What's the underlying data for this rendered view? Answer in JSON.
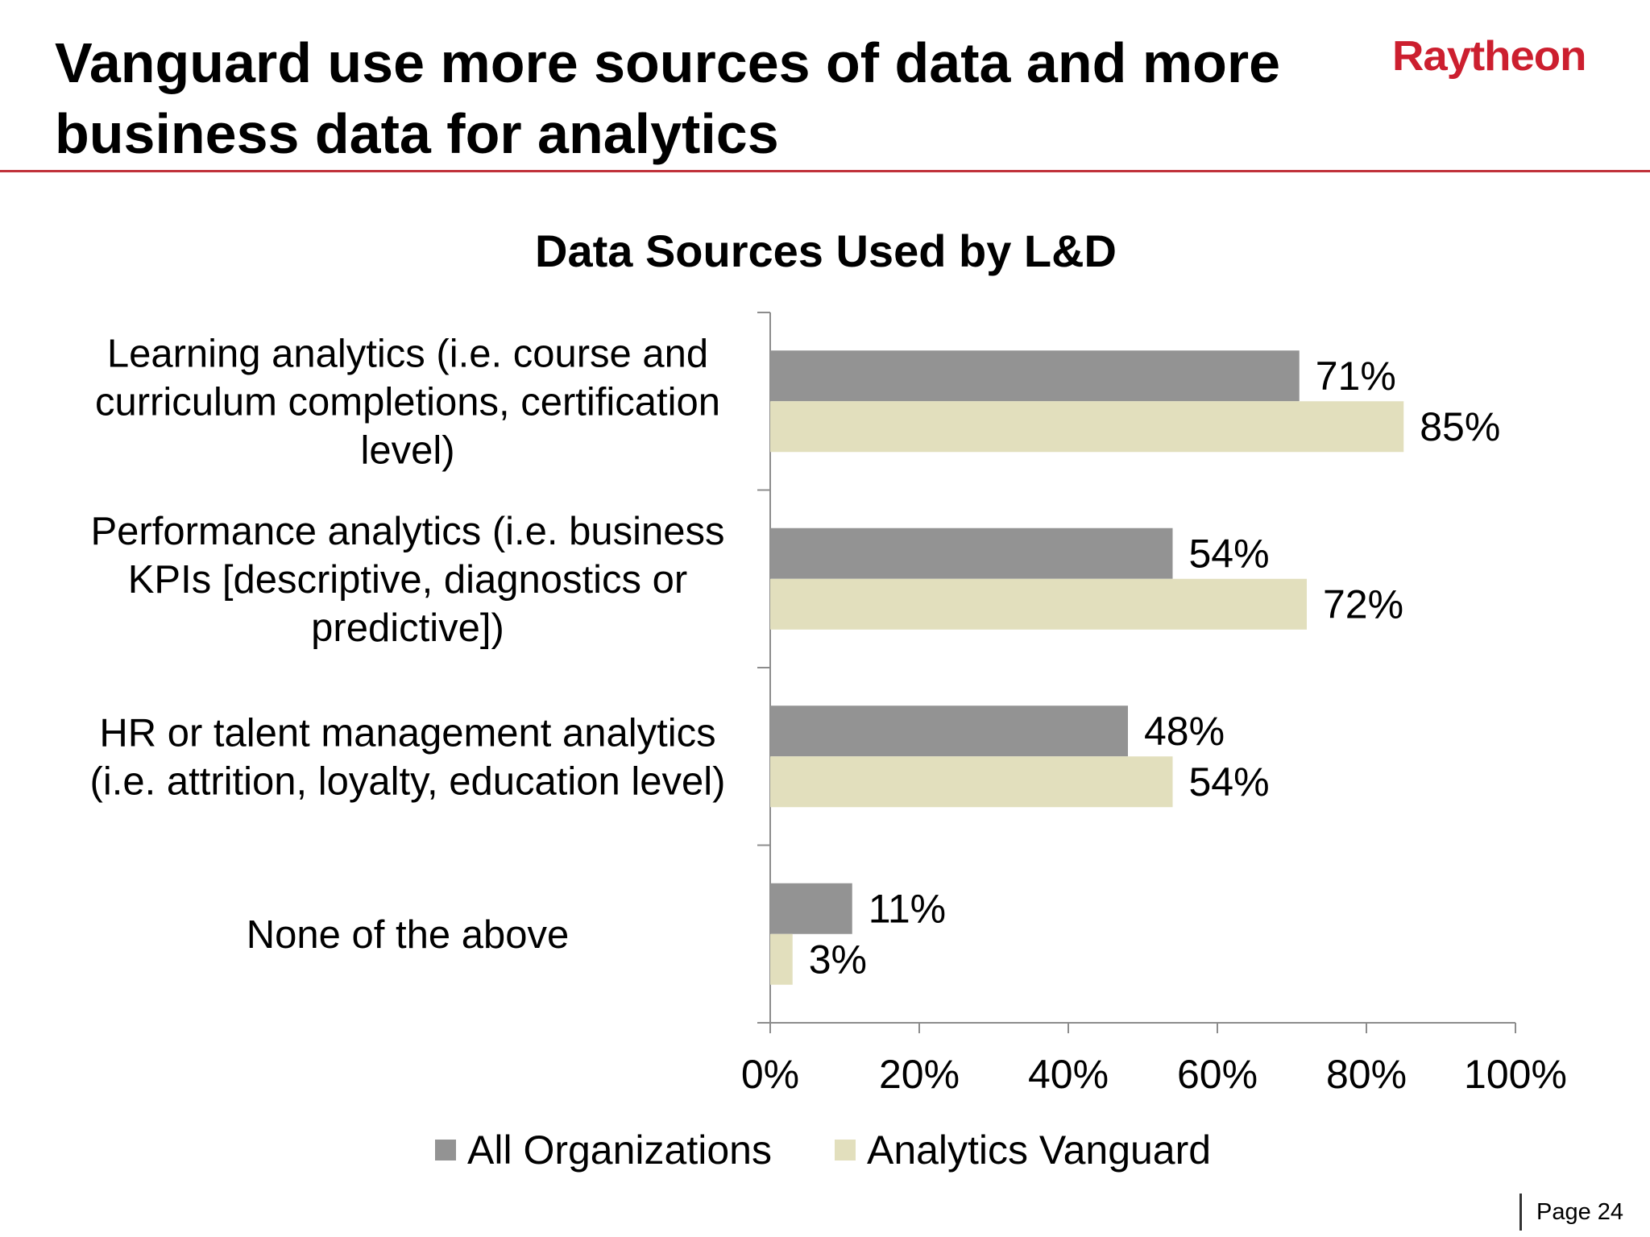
{
  "slide": {
    "title_line1": "Vanguard use more sources of data and more",
    "title_line2": "business data for analytics",
    "logo_text": "Raytheon",
    "page_label": "Page 24"
  },
  "colors": {
    "brand": "#cc1f2f",
    "rule": "#c0323a",
    "all_orgs": "#939393",
    "vanguard": "#e2dfbd",
    "axis": "#8c8c8c"
  },
  "chart_data": {
    "type": "bar",
    "orientation": "horizontal",
    "title": "Data Sources Used by L&D",
    "categories": [
      [
        "Learning analytics (i.e. course and",
        "curriculum completions, certification",
        "level)"
      ],
      [
        "Performance analytics (i.e. business",
        "KPIs [descriptive, diagnostics or",
        "predictive])"
      ],
      [
        "HR or talent management analytics",
        "(i.e. attrition, loyalty, education level)"
      ],
      [
        "None of the above"
      ]
    ],
    "series": [
      {
        "name": "All Organizations",
        "values": [
          71,
          54,
          48,
          11
        ],
        "labels": [
          "71%",
          "54%",
          "48%",
          "11%"
        ]
      },
      {
        "name": "Analytics Vanguard",
        "values": [
          85,
          72,
          54,
          3
        ],
        "labels": [
          "85%",
          "72%",
          "54%",
          "3%"
        ]
      }
    ],
    "xlim": [
      0,
      100
    ],
    "xticks": [
      0,
      20,
      40,
      60,
      80,
      100
    ],
    "xtick_labels": [
      "0%",
      "20%",
      "40%",
      "60%",
      "80%",
      "100%"
    ],
    "legend_position": "bottom",
    "grid": false
  }
}
